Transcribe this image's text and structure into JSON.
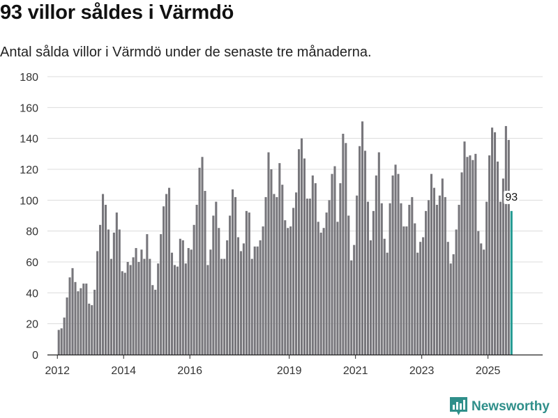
{
  "header": {
    "title": "93 villor såldes i Värmdö",
    "subtitle": "Antal sålda villor i Värmdö under de senaste tre månaderna."
  },
  "brand": {
    "name": "Newsworthy",
    "icon": "newsworthy-logo-icon"
  },
  "colors": {
    "bar": "#77767b",
    "highlight": "#229a92",
    "grid": "#dcdcdc"
  },
  "chart_data": {
    "type": "bar",
    "title": "93 villor såldes i Värmdö",
    "subtitle": "Antal sålda villor i Värmdö under de senaste tre månaderna.",
    "xlabel": "",
    "ylabel": "",
    "ylim": [
      0,
      180
    ],
    "yticks": [
      0,
      20,
      40,
      60,
      80,
      100,
      120,
      140,
      160,
      180
    ],
    "x_range_years": [
      2011.7,
      2026.65
    ],
    "xticks": [
      {
        "label": "2012",
        "year": 2012
      },
      {
        "label": "2014",
        "year": 2014
      },
      {
        "label": "2016",
        "year": 2016
      },
      {
        "label": "2019",
        "year": 2019
      },
      {
        "label": "2021",
        "year": 2021
      },
      {
        "label": "2023",
        "year": 2023
      },
      {
        "label": "2025",
        "year": 2025
      }
    ],
    "start": "2012-01",
    "interval": "month",
    "highlight_label": "93",
    "values": [
      16,
      17,
      24,
      37,
      50,
      56,
      47,
      41,
      43,
      46,
      46,
      33,
      32,
      42,
      67,
      84,
      104,
      97,
      81,
      62,
      79,
      92,
      81,
      54,
      53,
      60,
      58,
      63,
      69,
      60,
      68,
      62,
      78,
      62,
      45,
      42,
      59,
      78,
      96,
      104,
      108,
      66,
      58,
      57,
      75,
      74,
      59,
      69,
      68,
      84,
      97,
      121,
      128,
      106,
      58,
      68,
      90,
      99,
      82,
      62,
      62,
      74,
      90,
      107,
      102,
      76,
      67,
      72,
      93,
      92,
      62,
      70,
      70,
      74,
      83,
      102,
      131,
      120,
      104,
      102,
      124,
      110,
      87,
      82,
      83,
      95,
      105,
      133,
      140,
      127,
      101,
      101,
      116,
      111,
      86,
      79,
      82,
      92,
      100,
      117,
      122,
      86,
      111,
      143,
      137,
      90,
      61,
      71,
      103,
      135,
      151,
      132,
      99,
      74,
      93,
      116,
      131,
      98,
      75,
      66,
      98,
      116,
      123,
      117,
      98,
      83,
      83,
      97,
      102,
      85,
      66,
      73,
      76,
      93,
      100,
      117,
      108,
      97,
      103,
      114,
      102,
      73,
      59,
      65,
      81,
      97,
      118,
      138,
      128,
      129,
      126,
      130,
      80,
      72,
      68,
      99,
      129,
      147,
      144,
      125,
      99,
      114,
      148,
      139,
      93
    ]
  }
}
